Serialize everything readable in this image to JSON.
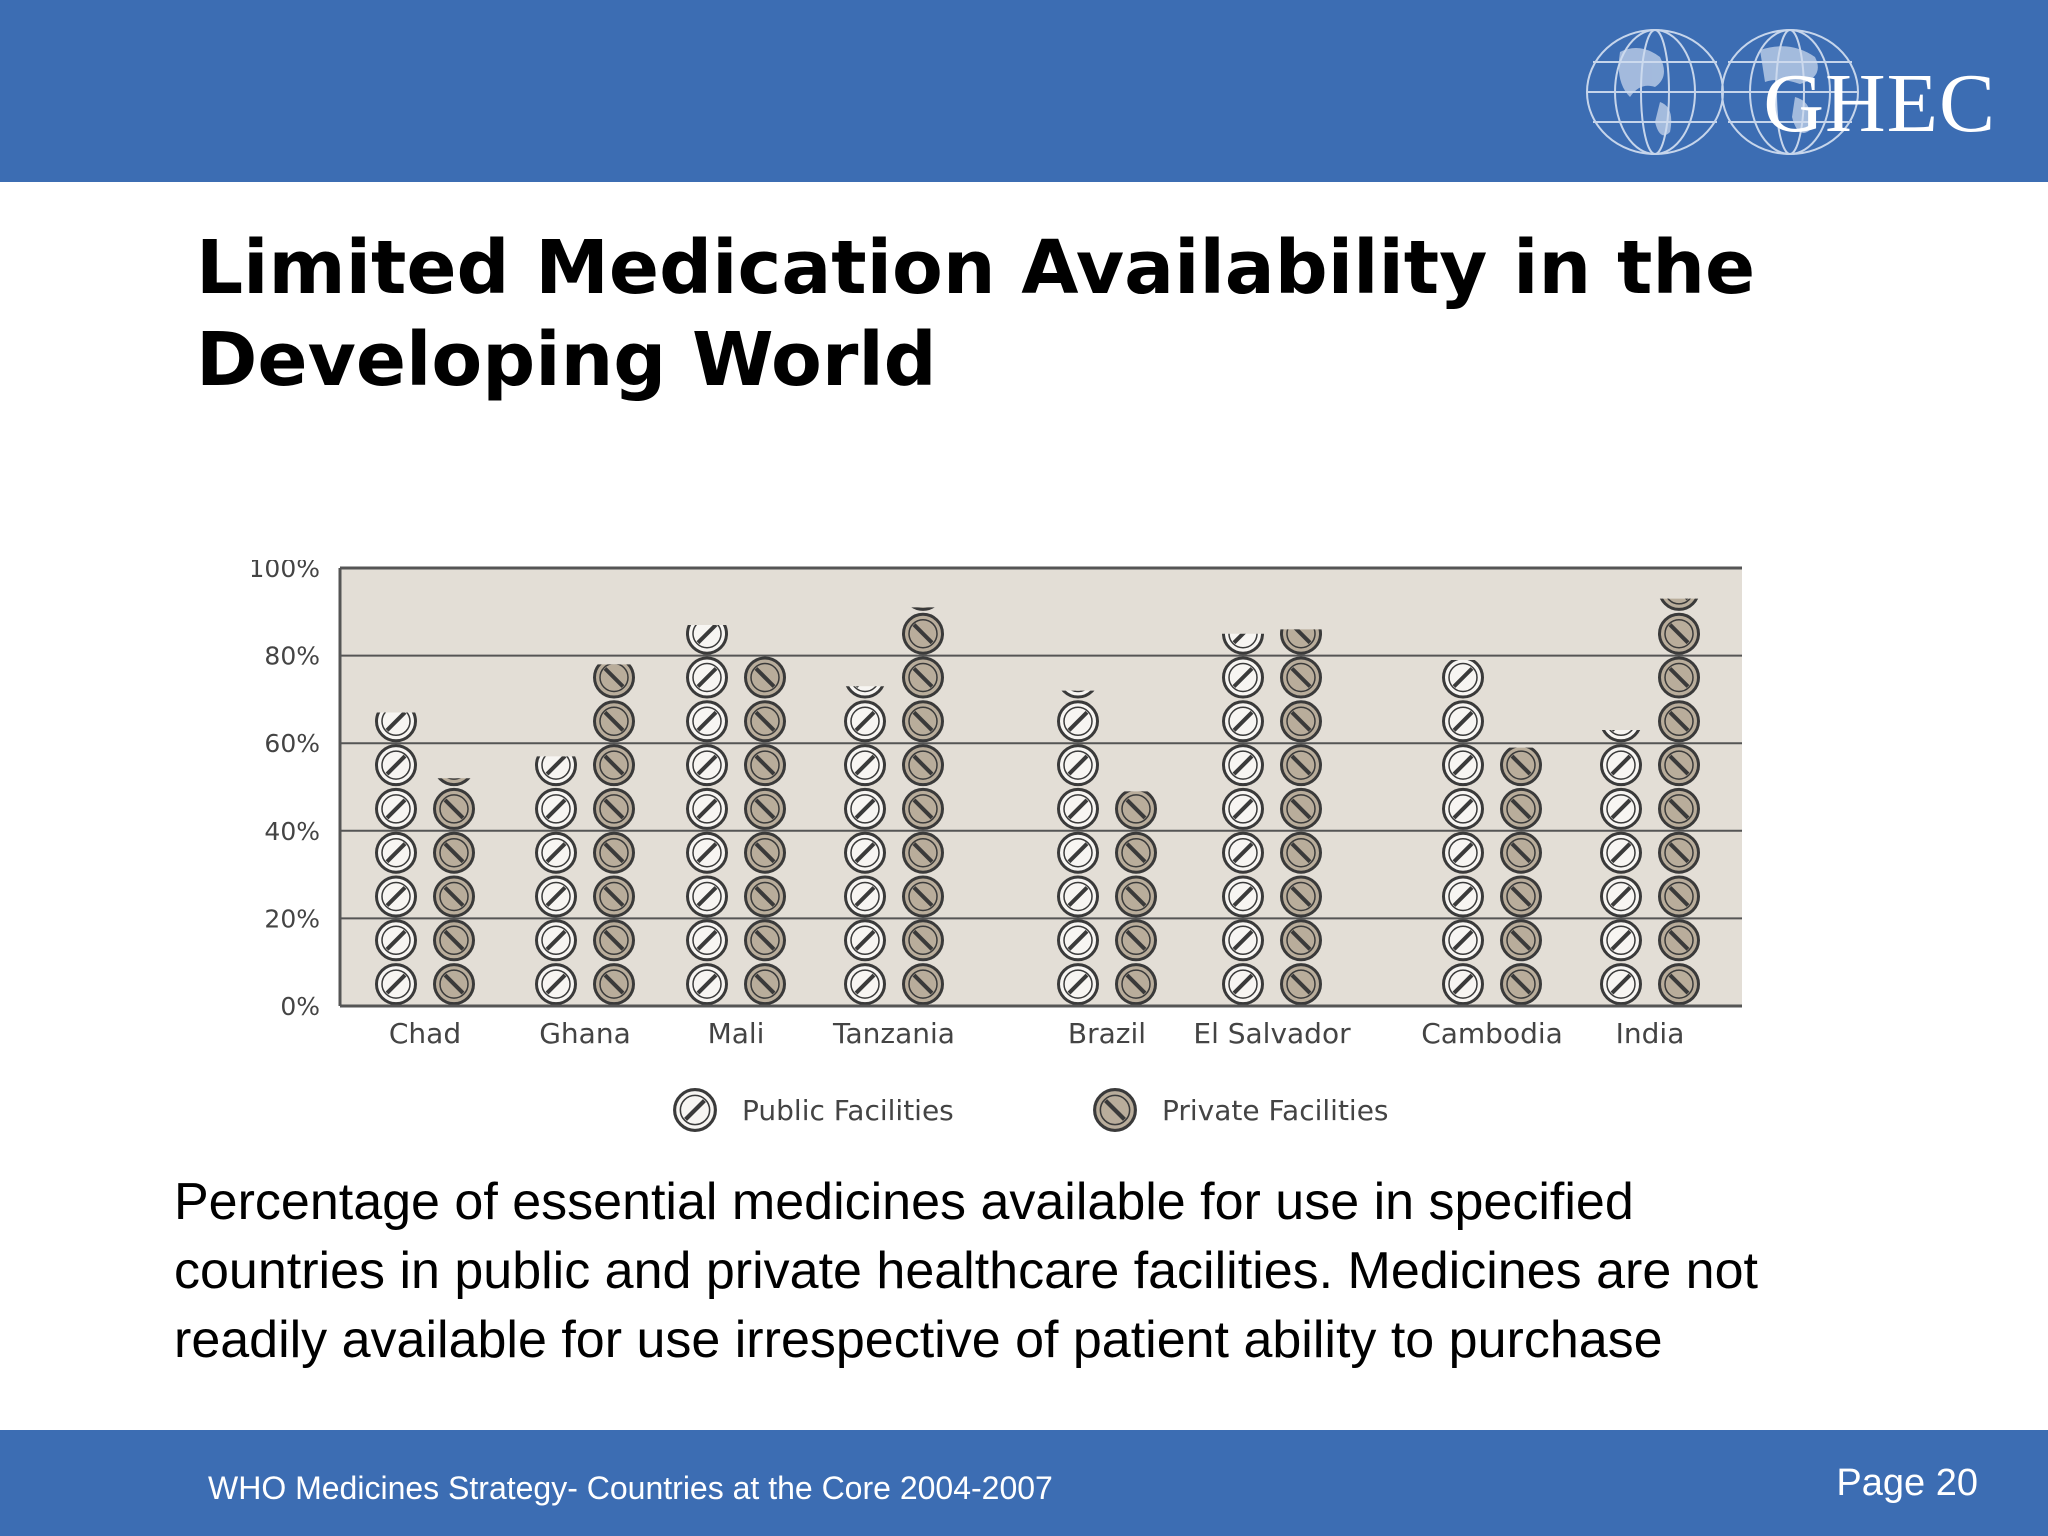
{
  "header": {
    "logo_text": "GHEC"
  },
  "slide": {
    "title_line1": "Limited Medication Availability in the",
    "title_line2": "Developing World",
    "caption_line1": "Percentage of essential medicines available for use in specified",
    "caption_line2": "countries in public and private healthcare facilities. Medicines are not",
    "caption_line3": "readily available for use irrespective of patient ability to purchase"
  },
  "footer": {
    "source": "WHO Medicines Strategy- Countries at the Core 2004-2007",
    "page": "Page 20"
  },
  "colors": {
    "bar_blue": "#3c6db3",
    "plot_bg": "#e3ded6",
    "public_fill": "#f7f5f2",
    "private_fill": "#b9ad9b",
    "icon_stroke": "#3a3a3a"
  },
  "chart_data": {
    "type": "bar",
    "title": "",
    "xlabel": "",
    "ylabel": "",
    "ylim": [
      0,
      100
    ],
    "y_ticks": [
      "0%",
      "20%",
      "40%",
      "60%",
      "80%",
      "100%"
    ],
    "categories": [
      "Chad",
      "Ghana",
      "Mali",
      "Tanzania",
      "Brazil",
      "El Salvador",
      "Cambodia",
      "India"
    ],
    "groups": [
      [
        0,
        1,
        2,
        3
      ],
      [
        4,
        5
      ],
      [
        6,
        7
      ]
    ],
    "series": [
      {
        "name": "Public Facilities",
        "values": [
          67,
          57,
          87,
          73,
          72,
          85,
          79,
          63
        ]
      },
      {
        "name": "Private Facilities",
        "values": [
          52,
          78,
          80,
          91,
          49,
          86,
          59,
          93
        ]
      }
    ],
    "grid": true,
    "legend_position": "bottom"
  }
}
